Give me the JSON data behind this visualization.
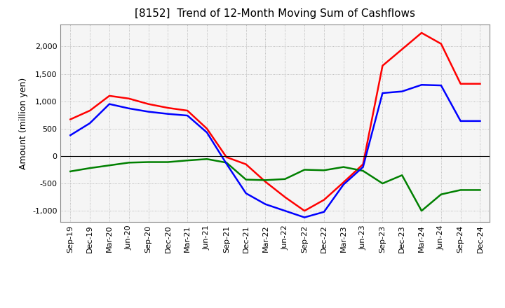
{
  "title": "[8152]  Trend of 12-Month Moving Sum of Cashflows",
  "ylabel": "Amount (million yen)",
  "x_labels": [
    "Sep-19",
    "Dec-19",
    "Mar-20",
    "Jun-20",
    "Sep-20",
    "Dec-20",
    "Mar-21",
    "Jun-21",
    "Sep-21",
    "Dec-21",
    "Mar-22",
    "Jun-22",
    "Sep-22",
    "Dec-22",
    "Mar-23",
    "Jun-23",
    "Sep-23",
    "Dec-23",
    "Mar-24",
    "Jun-24",
    "Sep-24",
    "Dec-24"
  ],
  "operating": [
    670,
    830,
    1100,
    1050,
    950,
    880,
    830,
    500,
    -20,
    -150,
    -470,
    -750,
    -1000,
    -800,
    -480,
    -150,
    1650,
    1950,
    2250,
    2050,
    1320,
    1320
  ],
  "investing": [
    -280,
    -220,
    -170,
    -120,
    -110,
    -110,
    -80,
    -55,
    -120,
    -430,
    -440,
    -420,
    -250,
    -260,
    -200,
    -270,
    -500,
    -350,
    -1000,
    -700,
    -620,
    -620
  ],
  "free": [
    380,
    600,
    950,
    870,
    810,
    770,
    740,
    430,
    -140,
    -680,
    -880,
    -1000,
    -1120,
    -1020,
    -520,
    -200,
    1150,
    1180,
    1300,
    1290,
    640,
    640
  ],
  "ylim": [
    -1200,
    2400
  ],
  "yticks": [
    -1000,
    -500,
    0,
    500,
    1000,
    1500,
    2000
  ],
  "operating_color": "#ff0000",
  "investing_color": "#008000",
  "free_color": "#0000ff",
  "bg_color": "#ffffff",
  "plot_bg_color": "#f5f5f5",
  "grid_color": "#aaaaaa",
  "linewidth": 1.8,
  "title_fontsize": 11,
  "label_fontsize": 9,
  "tick_fontsize": 8,
  "legend_fontsize": 9
}
